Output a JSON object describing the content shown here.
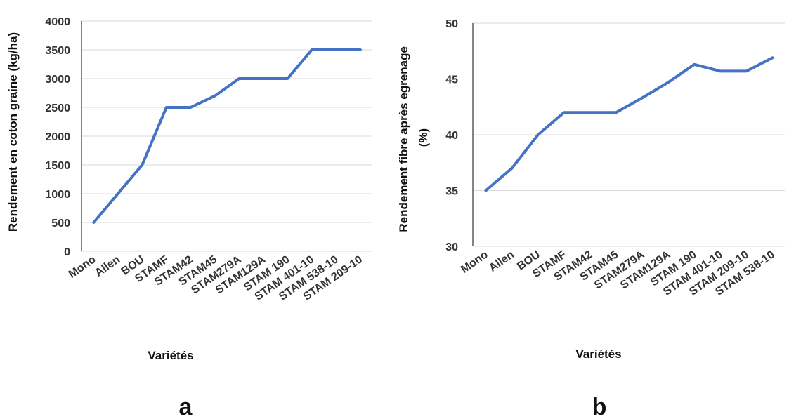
{
  "chart_data": [
    {
      "type": "line",
      "panel_label": "a",
      "xlabel": "Variétés",
      "ylabel": "Rendement en coton graine (kg/ha)",
      "ylim": [
        0,
        4000
      ],
      "yticks": [
        0,
        500,
        1000,
        1500,
        2000,
        2500,
        3000,
        3500,
        4000
      ],
      "grid": true,
      "categories": [
        "Mono",
        "Allen",
        "BOU",
        "STAMF",
        "STAM42",
        "STAM45",
        "STAM279A",
        "STAM129A",
        "STAM 190",
        "STAM 401-10",
        "STAM 538-10",
        "STAM 209-10"
      ],
      "series": [
        {
          "values": [
            500,
            1000,
            1500,
            2500,
            2500,
            2700,
            3000,
            3000,
            3000,
            3500,
            3500,
            3500
          ],
          "color": "#4472C4"
        }
      ]
    },
    {
      "type": "line",
      "panel_label": "b",
      "xlabel": "Variétés",
      "ylabel": "Rendement fibre après egrenage (%)",
      "ylim": [
        30,
        50
      ],
      "yticks": [
        30,
        35,
        40,
        45,
        50
      ],
      "grid": true,
      "categories": [
        "Mono",
        "Allen",
        "BOU",
        "STAMF",
        "STAM42",
        "STAM45",
        "STAM279A",
        "STAM129A",
        "STAM 190",
        "STAM 401-10",
        "STAM 209-10",
        "STAM 538-10"
      ],
      "series": [
        {
          "values": [
            35,
            37,
            40,
            42,
            42,
            42,
            43.3,
            44.7,
            46.3,
            45.7,
            45.7,
            46.9
          ],
          "color": "#4472C4"
        }
      ]
    }
  ]
}
